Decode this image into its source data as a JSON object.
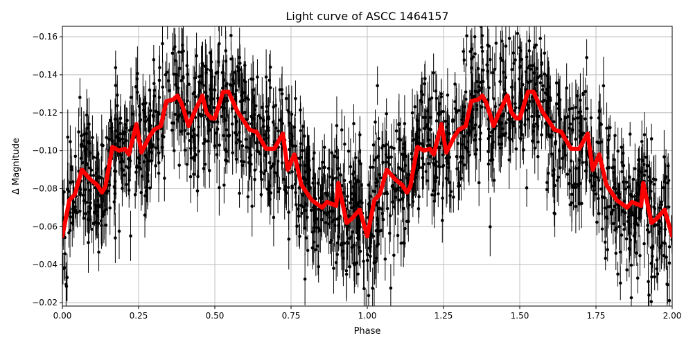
{
  "chart_data": {
    "type": "scatter",
    "title": "Light curve of ASCC 1464157",
    "xlabel": "Phase",
    "ylabel": "Δ Magnitude",
    "xlim": [
      0,
      2
    ],
    "ylim": [
      -0.0182,
      -0.1655
    ],
    "y_inverted": true,
    "grid": true,
    "x_ticks": [
      "0.00",
      "0.25",
      "0.50",
      "0.75",
      "1.00",
      "1.25",
      "1.50",
      "1.75",
      "2.00"
    ],
    "x_tick_values": [
      0,
      0.25,
      0.5,
      0.75,
      1,
      1.25,
      1.5,
      1.75,
      2
    ],
    "y_ticks": [
      "−0.16",
      "−0.14",
      "−0.12",
      "−0.10",
      "−0.08",
      "−0.06",
      "−0.04",
      "−0.02"
    ],
    "y_tick_values": [
      -0.16,
      -0.14,
      -0.12,
      -0.1,
      -0.08,
      -0.06,
      -0.04,
      -0.02
    ],
    "series": [
      {
        "kind": "errorbar-scatter",
        "color": "#000000",
        "description_of_values": "dense phase-folded measurements scattered about the smoothed curve",
        "approx_scatter_std": 0.022
      },
      {
        "kind": "line",
        "color": "#ff0000",
        "repeats_each_phase_cycle": true,
        "x": [
          0,
          0.023,
          0.041,
          0.064,
          0.091,
          0.114,
          0.13,
          0.141,
          0.164,
          0.186,
          0.205,
          0.218,
          0.243,
          0.259,
          0.284,
          0.3,
          0.323,
          0.341,
          0.364,
          0.377,
          0.391,
          0.414,
          0.432,
          0.459,
          0.473,
          0.489,
          0.5,
          0.527,
          0.545,
          0.573,
          0.614,
          0.636,
          0.668,
          0.695,
          0.723,
          0.739,
          0.761,
          0.784,
          0.818,
          0.852,
          0.868,
          0.898,
          0.905,
          0.932,
          0.948,
          0.975,
          1.0
        ],
        "y": [
          -0.055,
          -0.074,
          -0.077,
          -0.09,
          -0.085,
          -0.082,
          -0.078,
          -0.081,
          -0.102,
          -0.1,
          -0.101,
          -0.098,
          -0.114,
          -0.099,
          -0.107,
          -0.111,
          -0.113,
          -0.126,
          -0.127,
          -0.129,
          -0.125,
          -0.113,
          -0.12,
          -0.129,
          -0.12,
          -0.117,
          -0.117,
          -0.131,
          -0.131,
          -0.121,
          -0.111,
          -0.11,
          -0.101,
          -0.101,
          -0.109,
          -0.09,
          -0.098,
          -0.082,
          -0.074,
          -0.07,
          -0.073,
          -0.071,
          -0.083,
          -0.062,
          -0.064,
          -0.069,
          -0.055
        ]
      }
    ]
  }
}
